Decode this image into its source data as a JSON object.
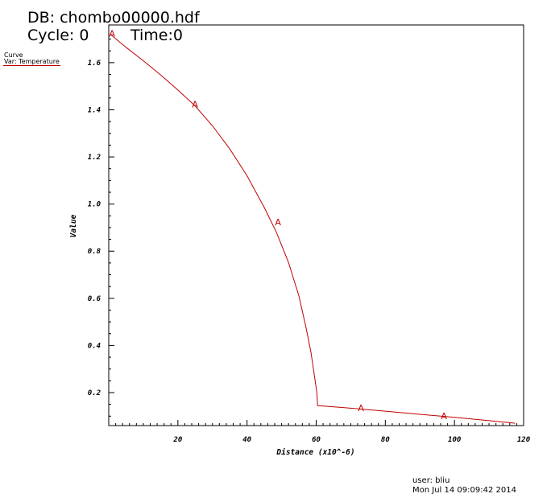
{
  "header": {
    "db_label": "DB: chombo00000.hdf",
    "cycle_label": "Cycle: 0",
    "time_label": "Time:0"
  },
  "legend": {
    "title": "Curve",
    "var_label": "Var: Temperature"
  },
  "footer": {
    "user": "user: bliu",
    "date": "Mon Jul 14 09:09:42 2014"
  },
  "colors": {
    "curve": "#c00000",
    "axis": "#000000"
  },
  "chart_data": {
    "type": "line",
    "title": "",
    "xlabel": "Distance (x10^-6)",
    "ylabel": "Value",
    "xlim": [
      0,
      120
    ],
    "ylim": [
      0.06,
      1.76
    ],
    "x_ticks": [
      20,
      40,
      60,
      80,
      100,
      120
    ],
    "y_ticks": [
      0.2,
      0.4,
      0.6,
      0.8,
      1.0,
      1.2,
      1.4,
      1.6
    ],
    "y_tick_labels": [
      "0.2",
      "0.4",
      "0.6",
      "0.8",
      "1.0",
      "1.2",
      "1.4",
      "1.6"
    ],
    "grid": false,
    "series": [
      {
        "name": "A",
        "x": [
          0.5,
          5,
          10,
          15,
          20,
          25,
          30,
          35,
          40,
          45,
          48.5,
          52,
          55,
          57,
          58.5,
          59.5,
          60.2,
          60.4,
          70,
          80,
          90,
          100,
          110,
          117.5
        ],
        "y": [
          1.72,
          1.665,
          1.608,
          1.548,
          1.484,
          1.416,
          1.332,
          1.234,
          1.12,
          0.985,
          0.88,
          0.752,
          0.61,
          0.48,
          0.37,
          0.27,
          0.2,
          0.145,
          0.134,
          0.121,
          0.108,
          0.095,
          0.081,
          0.07
        ]
      }
    ],
    "markers": [
      {
        "label": "A",
        "x": 0.5,
        "y": 1.72
      },
      {
        "label": "A",
        "x": 24.5,
        "y": 1.42
      },
      {
        "label": "A",
        "x": 48.5,
        "y": 0.92
      },
      {
        "label": "A",
        "x": 72.5,
        "y": 0.132
      },
      {
        "label": "A",
        "x": 96.5,
        "y": 0.097
      }
    ]
  }
}
